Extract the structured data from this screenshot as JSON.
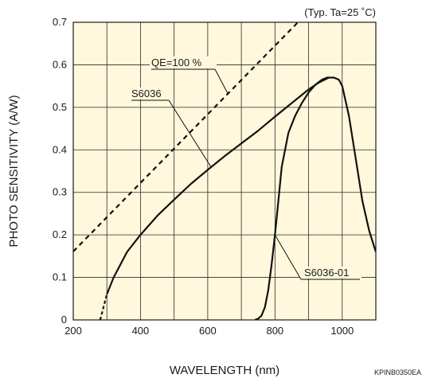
{
  "chart_data": {
    "type": "line",
    "condition": "(Typ. Ta=25 ˚C)",
    "xlabel": "WAVELENGTH (nm)",
    "ylabel": "PHOTO SENSITIVITY (A/W)",
    "figure_code": "KPINB0350EA",
    "xlim": [
      200,
      1100
    ],
    "ylim": [
      0,
      0.7
    ],
    "x_ticks": [
      200,
      400,
      600,
      800,
      1000
    ],
    "y_ticks": [
      0,
      0.1,
      0.2,
      0.3,
      0.4,
      0.5,
      0.6,
      0.7
    ],
    "grid": true,
    "plot_background": "#fff8dc",
    "series": [
      {
        "name": "QE=100 %",
        "style": "dashed",
        "x": [
          200,
          1100
        ],
        "y": [
          0.161,
          0.887
        ]
      },
      {
        "name": "S6036",
        "style": "solid",
        "x": [
          280,
          290,
          300,
          320,
          360,
          400,
          450,
          500,
          550,
          600,
          650,
          700,
          750,
          800,
          850,
          900,
          930,
          950,
          960,
          975,
          990,
          1000,
          1020,
          1040,
          1060,
          1080,
          1100
        ],
        "y": [
          0,
          0.03,
          0.06,
          0.1,
          0.16,
          0.2,
          0.245,
          0.283,
          0.32,
          0.353,
          0.385,
          0.415,
          0.445,
          0.478,
          0.51,
          0.542,
          0.558,
          0.566,
          0.57,
          0.57,
          0.565,
          0.55,
          0.48,
          0.38,
          0.28,
          0.21,
          0.16
        ]
      },
      {
        "name": "S6036-01",
        "style": "solid",
        "x": [
          740,
          750,
          760,
          770,
          780,
          790,
          800,
          810,
          820,
          840,
          860,
          880,
          900,
          920,
          940,
          955,
          960
        ],
        "y": [
          0,
          0.003,
          0.01,
          0.03,
          0.07,
          0.13,
          0.2,
          0.28,
          0.36,
          0.44,
          0.48,
          0.51,
          0.535,
          0.553,
          0.565,
          0.57,
          0.57
        ]
      }
    ],
    "annotations": [
      {
        "text": "QE=100 %",
        "series": "QE=100 %",
        "at_x": 660
      },
      {
        "text": "S6036",
        "series": "S6036",
        "at_x": 610
      },
      {
        "text": "S6036-01",
        "series": "S6036-01",
        "at_x": 800
      }
    ]
  }
}
